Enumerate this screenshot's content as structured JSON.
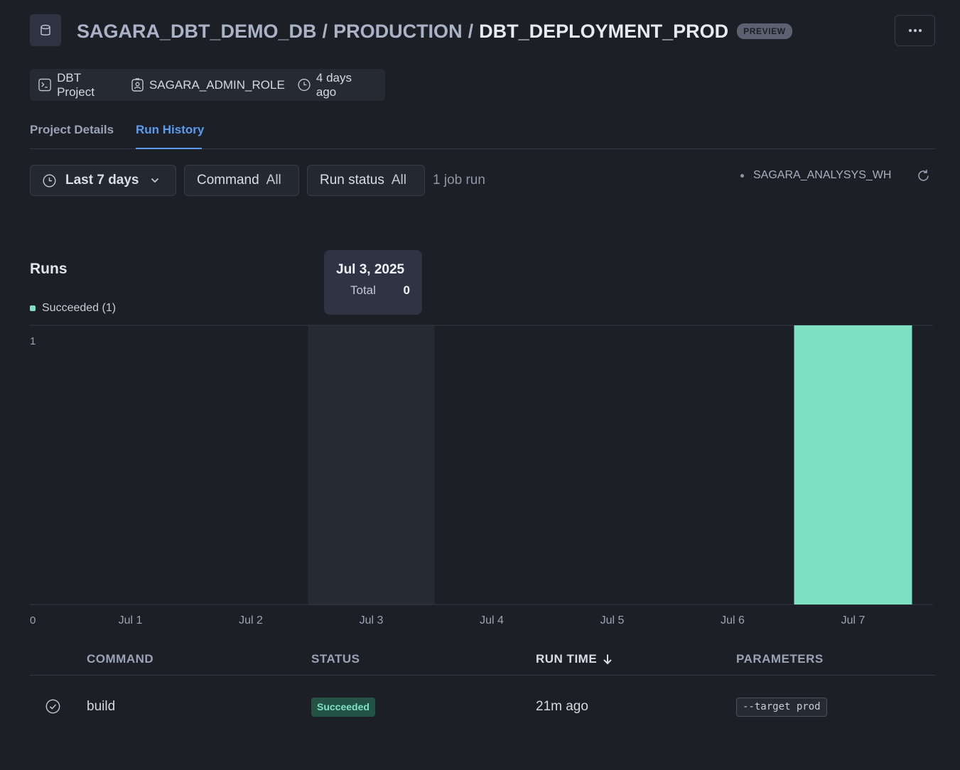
{
  "header": {
    "crumbs": [
      "SAGARA_DBT_DEMO_DB",
      "PRODUCTION"
    ],
    "separator": "/",
    "current": "DBT_DEPLOYMENT_PROD",
    "badge": "PREVIEW",
    "more_label": "···",
    "icons": {
      "object": "database-icon",
      "more": "more-horizontal-icon"
    }
  },
  "meta": {
    "type": "DBT Project",
    "role": "SAGARA_ADMIN_ROLE",
    "updated": "4 days ago",
    "icons": {
      "type": "terminal-icon",
      "role": "user-badge-icon",
      "updated": "clock-icon"
    }
  },
  "tabs": [
    {
      "label": "Project Details",
      "active": false
    },
    {
      "label": "Run History",
      "active": true
    }
  ],
  "filters": {
    "date_range": "Last 7 days",
    "command_label": "Command",
    "command_value": "All",
    "status_label": "Run status",
    "status_value": "All",
    "job_count": "1 job run",
    "warehouse": "SAGARA_ANALYSYS_WH"
  },
  "runs": {
    "title": "Runs",
    "legend": "Succeeded (1)",
    "tooltip": {
      "date": "Jul 3, 2025",
      "label": "Total",
      "value": "0"
    }
  },
  "chart_data": {
    "type": "bar",
    "categories": [
      "Jul 1",
      "Jul 2",
      "Jul 3",
      "Jul 4",
      "Jul 5",
      "Jul 6",
      "Jul 7"
    ],
    "series": [
      {
        "name": "Succeeded",
        "values": [
          0,
          0,
          0,
          0,
          0,
          0,
          1
        ]
      }
    ],
    "ylim": [
      0,
      1
    ],
    "yticks": [
      "0",
      "1"
    ],
    "highlighted_category": "Jul 3",
    "color": "#7ee2c2",
    "grid": false
  },
  "table": {
    "headers": {
      "command": "COMMAND",
      "status": "STATUS",
      "run_time": "RUN TIME",
      "parameters": "PARAMETERS"
    },
    "rows": [
      {
        "command": "build",
        "status": "Succeeded",
        "run_time": "21m ago",
        "parameters": "--target prod"
      }
    ]
  }
}
